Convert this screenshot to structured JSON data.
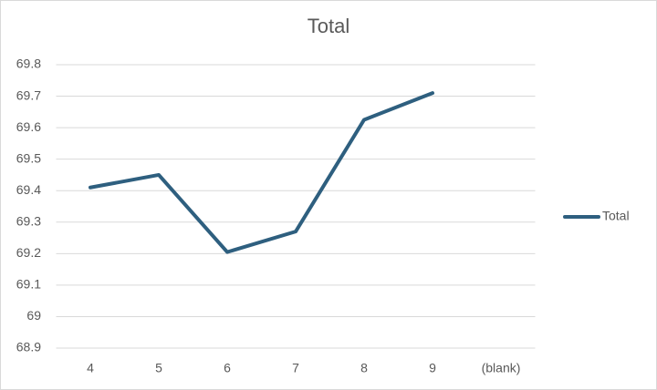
{
  "chart_data": {
    "type": "line",
    "title": "Total",
    "categories": [
      "4",
      "5",
      "6",
      "7",
      "8",
      "9",
      "(blank)"
    ],
    "series": [
      {
        "name": "Total",
        "color": "#2e5f7f",
        "values": [
          69.41,
          69.45,
          69.205,
          69.27,
          69.625,
          69.71,
          null
        ]
      }
    ],
    "ylim": [
      68.9,
      69.8
    ],
    "yticks": [
      68.9,
      69,
      69.1,
      69.2,
      69.3,
      69.4,
      69.5,
      69.6,
      69.7,
      69.8
    ],
    "grid": true,
    "legend": "right"
  }
}
